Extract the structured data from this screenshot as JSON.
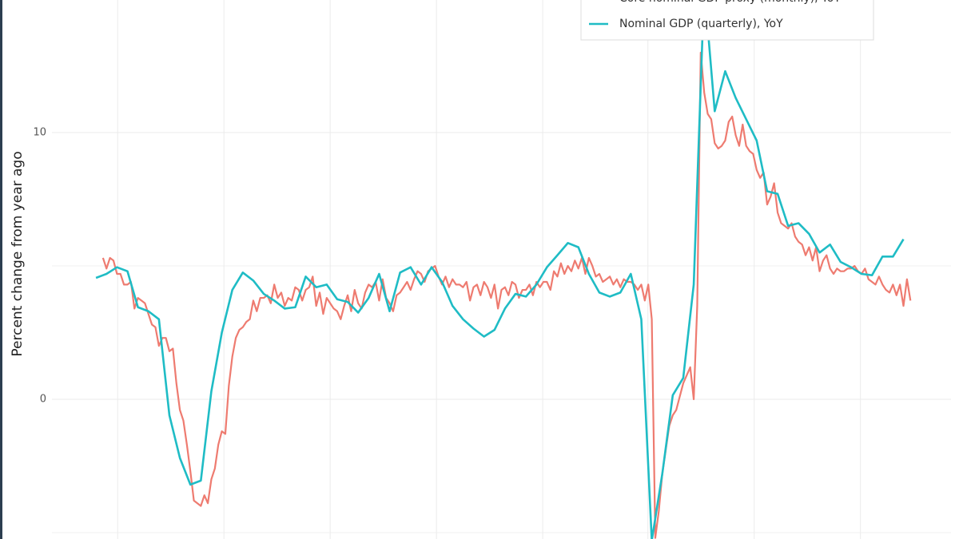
{
  "chart_data": {
    "type": "line",
    "ylabel": "Percent change from year ago",
    "ylim": [
      -5.24,
      14.97
    ],
    "yticks": [
      0,
      10
    ],
    "y_minor_ticks": [
      -5,
      5
    ],
    "xlim": [
      -12.6,
      244.6
    ],
    "xticks": [
      6.2,
      36.6,
      67.0,
      97.4,
      127.8,
      157.9,
      188.3,
      218.7
    ],
    "grid": true,
    "legend": "top-right",
    "series": [
      {
        "name": "Core nominal GDP proxy (monthly), YoY",
        "color": "#ee7b70",
        "x": [
          2,
          3,
          4,
          5,
          6,
          7,
          8,
          9,
          10,
          11,
          12,
          13,
          14,
          15,
          16,
          17,
          18,
          19,
          20,
          21,
          22,
          23,
          24,
          25,
          26,
          27,
          28,
          29,
          30,
          31,
          32,
          33,
          34,
          35,
          36,
          37,
          38,
          39,
          40,
          41,
          42,
          43,
          44,
          45,
          46,
          47,
          48,
          49,
          50,
          51,
          52,
          53,
          54,
          55,
          56,
          57,
          58,
          59,
          60,
          61,
          62,
          63,
          64,
          65,
          66,
          67,
          68,
          69,
          70,
          71,
          72,
          73,
          74,
          75,
          76,
          77,
          78,
          79,
          80,
          81,
          82,
          83,
          84,
          85,
          86,
          87,
          88,
          89,
          90,
          91,
          92,
          93,
          94,
          95,
          96,
          97,
          98,
          99,
          100,
          101,
          102,
          103,
          104,
          105,
          106,
          107,
          108,
          109,
          110,
          111,
          112,
          113,
          114,
          115,
          116,
          117,
          118,
          119,
          120,
          121,
          122,
          123,
          124,
          125,
          126,
          127,
          128,
          129,
          130,
          131,
          132,
          133,
          134,
          135,
          136,
          137,
          138,
          139,
          140,
          141,
          142,
          143,
          144,
          145,
          146,
          147,
          148,
          149,
          150,
          151,
          152,
          153,
          154,
          155,
          156,
          157,
          158,
          159,
          160,
          161,
          162,
          163,
          164,
          165,
          166,
          167,
          168,
          169,
          170,
          171,
          172,
          173,
          174,
          175,
          176,
          177,
          178,
          179,
          180,
          181,
          182,
          183,
          184,
          185,
          186,
          187,
          188,
          189,
          190,
          191,
          192,
          193,
          194,
          195,
          196,
          197,
          198,
          199,
          200,
          201,
          202,
          203,
          204,
          205,
          206,
          207,
          208,
          209,
          210,
          211,
          212,
          213,
          214,
          215,
          216,
          217,
          218,
          219,
          220,
          221,
          222,
          223,
          224,
          225,
          226,
          227,
          228,
          229,
          230,
          231,
          232,
          233
        ],
        "values": [
          5.3,
          4.9,
          5.3,
          5.2,
          4.7,
          4.7,
          4.3,
          4.3,
          4.4,
          3.4,
          3.8,
          3.7,
          3.6,
          3.2,
          2.8,
          2.7,
          2.0,
          2.3,
          2.3,
          1.8,
          1.9,
          0.6,
          -0.4,
          -0.8,
          -1.7,
          -2.7,
          -3.8,
          -3.9,
          -4.0,
          -3.6,
          -3.9,
          -3.0,
          -2.6,
          -1.7,
          -1.2,
          -1.3,
          0.5,
          1.6,
          2.3,
          2.6,
          2.7,
          2.9,
          3.0,
          3.7,
          3.3,
          3.8,
          3.8,
          3.9,
          3.6,
          4.3,
          3.8,
          4.0,
          3.5,
          3.8,
          3.7,
          4.2,
          4.1,
          3.7,
          4.1,
          4.2,
          4.6,
          3.5,
          4.0,
          3.2,
          3.8,
          3.6,
          3.4,
          3.3,
          3.0,
          3.5,
          3.9,
          3.3,
          4.1,
          3.6,
          3.4,
          4.0,
          4.3,
          4.2,
          4.4,
          3.7,
          4.5,
          3.8,
          3.6,
          3.3,
          3.9,
          4.0,
          4.2,
          4.4,
          4.1,
          4.5,
          4.8,
          4.7,
          4.4,
          4.8,
          4.9,
          5.0,
          4.6,
          4.3,
          4.6,
          4.2,
          4.5,
          4.3,
          4.3,
          4.2,
          4.4,
          3.7,
          4.2,
          4.3,
          3.9,
          4.4,
          4.2,
          3.8,
          4.3,
          3.4,
          4.1,
          4.2,
          3.9,
          4.4,
          4.3,
          3.8,
          4.1,
          4.1,
          4.3,
          3.9,
          4.4,
          4.2,
          4.4,
          4.4,
          4.1,
          4.8,
          4.6,
          5.1,
          4.7,
          5.0,
          4.8,
          5.2,
          4.9,
          5.3,
          4.7,
          5.3,
          5.0,
          4.6,
          4.7,
          4.4,
          4.5,
          4.6,
          4.3,
          4.5,
          4.2,
          4.5,
          4.4,
          4.4,
          4.3,
          4.1,
          4.3,
          3.7,
          4.3,
          3.0,
          -5.2,
          -4.2,
          -2.8,
          -1.9,
          -1.0,
          -0.6,
          -0.4,
          0.1,
          0.6,
          0.9,
          1.2,
          0.0,
          3.5,
          13.0,
          11.5,
          10.7,
          10.5,
          9.6,
          9.4,
          9.5,
          9.7,
          10.4,
          10.6,
          9.9,
          9.5,
          10.3,
          9.5,
          9.3,
          9.2,
          8.6,
          8.3,
          8.5,
          7.3,
          7.6,
          8.1,
          7.0,
          6.6,
          6.5,
          6.4,
          6.6,
          6.1,
          5.9,
          5.8,
          5.4,
          5.7,
          5.2,
          5.7,
          4.8,
          5.2,
          5.4,
          4.9,
          4.7,
          4.9,
          4.8,
          4.8,
          4.9,
          4.9,
          5.0,
          4.8,
          4.7,
          4.9,
          4.5,
          4.4,
          4.3,
          4.6,
          4.3,
          4.1,
          4.0,
          4.3,
          3.9,
          4.3,
          3.5,
          4.5,
          3.7
        ]
      },
      {
        "name": "Nominal GDP (quarterly), YoY",
        "color": "#1fbcc5",
        "x": [
          0,
          3,
          6,
          9,
          12,
          15,
          18,
          21,
          24,
          27,
          30,
          33,
          36,
          39,
          42,
          45,
          48,
          51,
          54,
          57,
          60,
          63,
          66,
          69,
          72,
          75,
          78,
          81,
          84,
          87,
          90,
          93,
          96,
          99,
          102,
          105,
          108,
          111,
          114,
          117,
          120,
          123,
          126,
          129,
          132,
          135,
          138,
          141,
          144,
          147,
          150,
          153,
          156,
          159,
          162,
          165,
          168,
          171,
          174,
          177,
          180,
          183,
          186,
          189,
          192,
          195,
          198,
          201,
          204,
          207,
          210,
          213,
          216,
          219,
          222,
          225,
          228,
          231
        ],
        "values": [
          4.55,
          4.7,
          4.95,
          4.8,
          3.45,
          3.3,
          3.0,
          -0.6,
          -2.2,
          -3.2,
          -3.05,
          0.3,
          2.5,
          4.1,
          4.75,
          4.45,
          3.95,
          3.7,
          3.4,
          3.45,
          4.6,
          4.2,
          4.3,
          3.75,
          3.65,
          3.25,
          3.8,
          4.7,
          3.3,
          4.75,
          4.95,
          4.3,
          4.95,
          4.4,
          3.5,
          3.0,
          2.65,
          2.35,
          2.6,
          3.4,
          3.95,
          3.85,
          4.3,
          4.95,
          5.4,
          5.86,
          5.7,
          4.7,
          4.0,
          3.85,
          4.0,
          4.7,
          3.0,
          -5.3,
          -2.8,
          0.15,
          0.8,
          4.3,
          15.5,
          10.8,
          12.3,
          11.3,
          10.5,
          9.7,
          7.8,
          7.7,
          6.5,
          6.6,
          6.2,
          5.5,
          5.8,
          5.15,
          4.95,
          4.7,
          4.65,
          5.35,
          5.35,
          6.0
        ]
      }
    ]
  }
}
